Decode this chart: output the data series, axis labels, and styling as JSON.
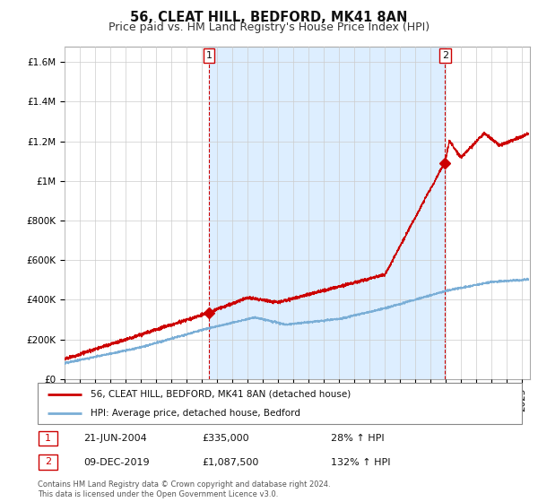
{
  "title": "56, CLEAT HILL, BEDFORD, MK41 8AN",
  "subtitle": "Price paid vs. HM Land Registry's House Price Index (HPI)",
  "ytick_values": [
    0,
    200000,
    400000,
    600000,
    800000,
    1000000,
    1200000,
    1400000,
    1600000
  ],
  "ylim": [
    0,
    1680000
  ],
  "xlim_start": 1995.0,
  "xlim_end": 2025.5,
  "line1_color": "#cc0000",
  "line2_color": "#7aaed6",
  "fill_color": "#ddeeff",
  "point1_x": 2004.47,
  "point1_y": 335000,
  "point2_x": 2019.93,
  "point2_y": 1087500,
  "legend_line1": "56, CLEAT HILL, BEDFORD, MK41 8AN (detached house)",
  "legend_line2": "HPI: Average price, detached house, Bedford",
  "annotation1_num": "1",
  "annotation1_date": "21-JUN-2004",
  "annotation1_price": "£335,000",
  "annotation1_hpi": "28% ↑ HPI",
  "annotation2_num": "2",
  "annotation2_date": "09-DEC-2019",
  "annotation2_price": "£1,087,500",
  "annotation2_hpi": "132% ↑ HPI",
  "footer": "Contains HM Land Registry data © Crown copyright and database right 2024.\nThis data is licensed under the Open Government Licence v3.0.",
  "background_color": "#ffffff",
  "grid_color": "#cccccc",
  "title_fontsize": 10.5,
  "subtitle_fontsize": 9,
  "tick_fontsize": 7.5
}
